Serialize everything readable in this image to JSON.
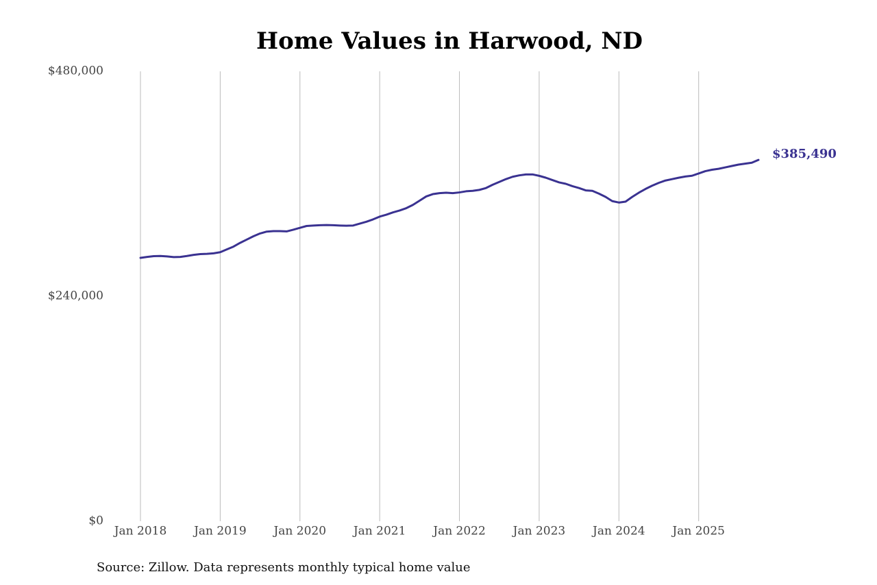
{
  "chart_data": {
    "type": "line",
    "title": "Home Values in Harwood, ND",
    "source": "Source: Zillow. Data represents monthly typical home value",
    "color": "#3a3291",
    "x": [
      "2018-01",
      "2018-02",
      "2018-03",
      "2018-04",
      "2018-05",
      "2018-06",
      "2018-07",
      "2018-08",
      "2018-09",
      "2018-10",
      "2018-11",
      "2018-12",
      "2019-01",
      "2019-02",
      "2019-03",
      "2019-04",
      "2019-05",
      "2019-06",
      "2019-07",
      "2019-08",
      "2019-09",
      "2019-10",
      "2019-11",
      "2019-12",
      "2020-01",
      "2020-02",
      "2020-03",
      "2020-04",
      "2020-05",
      "2020-06",
      "2020-07",
      "2020-08",
      "2020-09",
      "2020-10",
      "2020-11",
      "2020-12",
      "2021-01",
      "2021-02",
      "2021-03",
      "2021-04",
      "2021-05",
      "2021-06",
      "2021-07",
      "2021-08",
      "2021-09",
      "2021-10",
      "2021-11",
      "2021-12",
      "2022-01",
      "2022-02",
      "2022-03",
      "2022-04",
      "2022-05",
      "2022-06",
      "2022-07",
      "2022-08",
      "2022-09",
      "2022-10",
      "2022-11",
      "2022-12",
      "2023-01",
      "2023-02",
      "2023-03",
      "2023-04",
      "2023-05",
      "2023-06",
      "2023-07",
      "2023-08",
      "2023-09",
      "2023-10",
      "2023-11",
      "2023-12",
      "2024-01",
      "2024-02",
      "2024-03",
      "2024-04",
      "2024-05",
      "2024-06",
      "2024-07",
      "2024-08",
      "2024-09",
      "2024-10",
      "2024-11",
      "2024-12",
      "2025-01",
      "2025-02",
      "2025-03",
      "2025-04",
      "2025-05",
      "2025-06",
      "2025-07",
      "2025-08",
      "2025-09",
      "2025-10"
    ],
    "values": [
      281000,
      282000,
      282800,
      283000,
      282500,
      281800,
      282000,
      283000,
      284200,
      285000,
      285300,
      285800,
      287000,
      290000,
      293000,
      297000,
      300500,
      304000,
      307000,
      309000,
      309500,
      309500,
      309200,
      311000,
      313000,
      315000,
      315500,
      315800,
      316000,
      315800,
      315500,
      315300,
      315500,
      317500,
      319500,
      322000,
      325000,
      327000,
      329500,
      331500,
      334000,
      337500,
      342000,
      346500,
      349000,
      350000,
      350500,
      350000,
      350800,
      352000,
      352500,
      353500,
      355500,
      359000,
      362000,
      365000,
      367500,
      369000,
      370000,
      370000,
      368500,
      366500,
      364000,
      361500,
      360000,
      357500,
      355500,
      353000,
      352500,
      349500,
      346000,
      341500,
      340000,
      341000,
      346000,
      350500,
      354500,
      358000,
      361000,
      363500,
      365000,
      366500,
      367800,
      368600,
      371000,
      373500,
      375000,
      376000,
      377500,
      379000,
      380500,
      381500,
      382500,
      385490
    ],
    "value_labels": [
      null,
      null,
      null,
      null,
      null,
      null,
      null,
      null,
      null,
      null,
      null,
      null,
      null,
      null,
      null,
      null,
      null,
      null,
      null,
      null,
      null,
      null,
      null,
      null,
      null,
      null,
      null,
      null,
      null,
      null,
      null,
      null,
      null,
      null,
      null,
      null,
      null,
      null,
      null,
      null,
      null,
      null,
      null,
      null,
      null,
      null,
      null,
      null,
      null,
      null,
      null,
      null,
      null,
      null,
      null,
      null,
      null,
      null,
      null,
      null,
      null,
      null,
      null,
      null,
      null,
      null,
      null,
      null,
      null,
      null,
      null,
      null,
      null,
      null,
      null,
      null,
      null,
      null,
      null,
      null,
      null,
      null,
      null,
      null,
      null,
      null,
      null,
      null,
      null,
      null,
      null,
      null,
      null,
      "$385,490"
    ],
    "xlim": [
      "2018-01",
      "2025-10"
    ],
    "xticks": [
      {
        "value": "2018-01",
        "label": "Jan 2018"
      },
      {
        "value": "2019-01",
        "label": "Jan 2019"
      },
      {
        "value": "2020-01",
        "label": "Jan 2020"
      },
      {
        "value": "2021-01",
        "label": "Jan 2021"
      },
      {
        "value": "2022-01",
        "label": "Jan 2022"
      },
      {
        "value": "2023-01",
        "label": "Jan 2023"
      },
      {
        "value": "2024-01",
        "label": "Jan 2024"
      },
      {
        "value": "2025-01",
        "label": "Jan 2025"
      }
    ],
    "ylim": [
      0,
      480000
    ],
    "yticks": [
      {
        "value": 0,
        "label": "$0"
      },
      {
        "value": 240000,
        "label": "$240,000"
      },
      {
        "value": 480000,
        "label": "$480,000"
      }
    ],
    "grid": "x"
  }
}
